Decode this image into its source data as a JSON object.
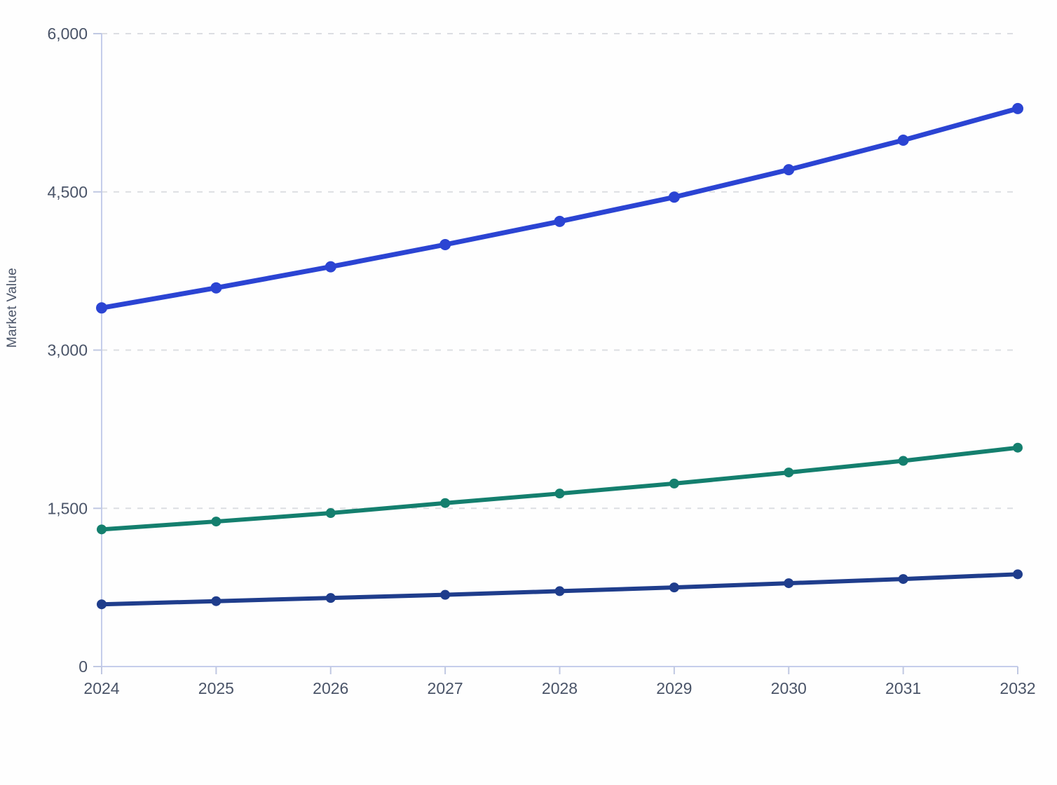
{
  "chart_data": {
    "type": "line",
    "title": "",
    "ylabel": "Market Value",
    "xlabel": "",
    "categories": [
      "2024",
      "2025",
      "2026",
      "2027",
      "2028",
      "2029",
      "2030",
      "2031",
      "2032"
    ],
    "ylim": [
      0,
      6000
    ],
    "y_ticks": {
      "values": [
        0,
        1500,
        3000,
        4500,
        6000
      ],
      "labels": [
        "0",
        "1,500",
        "3,000",
        "4,500",
        "6,000"
      ]
    },
    "grid": "horizontal-dashed",
    "legend_position": "none",
    "series": [
      {
        "name": "royal-blue-series",
        "color": "#2b44d3",
        "values": [
          3400,
          3590,
          3790,
          4000,
          4220,
          4450,
          4710,
          4990,
          5290
        ]
      },
      {
        "name": "teal-series",
        "color": "#147f6e",
        "values": [
          1300,
          1375,
          1455,
          1550,
          1640,
          1735,
          1840,
          1950,
          2075
        ]
      },
      {
        "name": "navy-series",
        "color": "#1f3d8c",
        "values": [
          590,
          620,
          650,
          680,
          715,
          750,
          790,
          830,
          875
        ]
      }
    ],
    "colors": {
      "axis_line": "#c5cdeb",
      "tick_mark": "#c0c8e2",
      "gridline": "#dcdee2",
      "tick_text": "#4a5468",
      "background": "#fefefe"
    }
  }
}
